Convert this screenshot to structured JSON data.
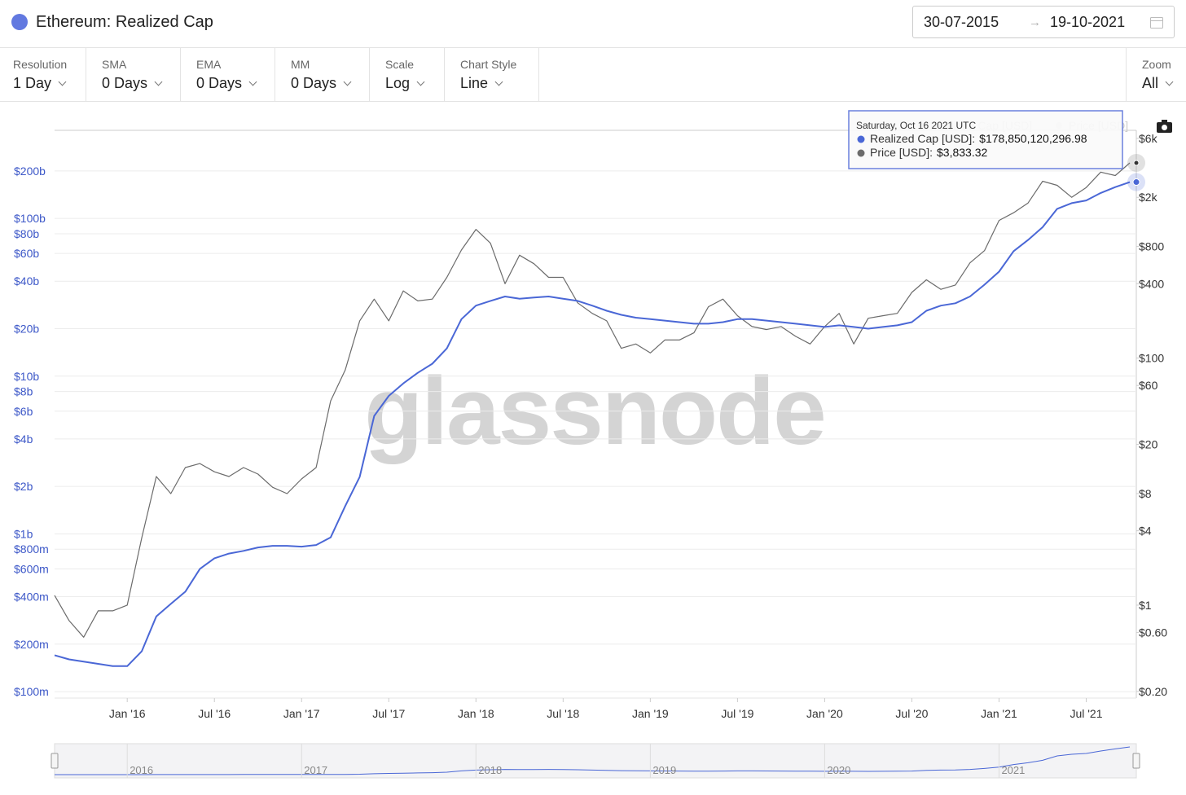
{
  "header": {
    "title": "Ethereum: Realized Cap",
    "date_from": "30-07-2015",
    "date_to": "19-10-2021"
  },
  "controls": [
    {
      "label": "Resolution",
      "value": "1 Day"
    },
    {
      "label": "SMA",
      "value": "0 Days"
    },
    {
      "label": "EMA",
      "value": "0 Days"
    },
    {
      "label": "MM",
      "value": "0 Days"
    },
    {
      "label": "Scale",
      "value": "Log"
    },
    {
      "label": "Chart Style",
      "value": "Line"
    }
  ],
  "zoom": {
    "label": "Zoom",
    "value": "All"
  },
  "chart_data": {
    "type": "line",
    "watermark": "glassnode",
    "log_scale": true,
    "grid": true,
    "legend": "top-right",
    "x": [
      "2015-08",
      "2015-09",
      "2015-10",
      "2015-11",
      "2015-12",
      "2016-01",
      "2016-02",
      "2016-03",
      "2016-04",
      "2016-05",
      "2016-06",
      "2016-07",
      "2016-08",
      "2016-09",
      "2016-10",
      "2016-11",
      "2016-12",
      "2017-01",
      "2017-02",
      "2017-03",
      "2017-04",
      "2017-05",
      "2017-06",
      "2017-07",
      "2017-08",
      "2017-09",
      "2017-10",
      "2017-11",
      "2017-12",
      "2018-01",
      "2018-02",
      "2018-03",
      "2018-04",
      "2018-05",
      "2018-06",
      "2018-07",
      "2018-08",
      "2018-09",
      "2018-10",
      "2018-11",
      "2018-12",
      "2019-01",
      "2019-02",
      "2019-03",
      "2019-04",
      "2019-05",
      "2019-06",
      "2019-07",
      "2019-08",
      "2019-09",
      "2019-10",
      "2019-11",
      "2019-12",
      "2020-01",
      "2020-02",
      "2020-03",
      "2020-04",
      "2020-05",
      "2020-06",
      "2020-07",
      "2020-08",
      "2020-09",
      "2020-10",
      "2020-11",
      "2020-12",
      "2021-01",
      "2021-02",
      "2021-03",
      "2021-04",
      "2021-05",
      "2021-06",
      "2021-07",
      "2021-08",
      "2021-09",
      "2021-10"
    ],
    "xlim": [
      "2015-08",
      "2021-10"
    ],
    "xticks": [
      {
        "value": "2016-01",
        "label": "Jan '16"
      },
      {
        "value": "2016-07",
        "label": "Jul '16"
      },
      {
        "value": "2017-01",
        "label": "Jan '17"
      },
      {
        "value": "2017-07",
        "label": "Jul '17"
      },
      {
        "value": "2018-01",
        "label": "Jan '18"
      },
      {
        "value": "2018-07",
        "label": "Jul '18"
      },
      {
        "value": "2019-01",
        "label": "Jan '19"
      },
      {
        "value": "2019-07",
        "label": "Jul '19"
      },
      {
        "value": "2020-01",
        "label": "Jan '20"
      },
      {
        "value": "2020-07",
        "label": "Jul '20"
      },
      {
        "value": "2021-01",
        "label": "Jan '21"
      },
      {
        "value": "2021-07",
        "label": "Jul '21"
      }
    ],
    "ylim": [
      91000000,
      362000000000
    ],
    "yticks": [
      {
        "value": 100000000,
        "label": "$100m"
      },
      {
        "value": 200000000,
        "label": "$200m"
      },
      {
        "value": 400000000,
        "label": "$400m"
      },
      {
        "value": 600000000,
        "label": "$600m"
      },
      {
        "value": 800000000,
        "label": "$800m"
      },
      {
        "value": 1000000000,
        "label": "$1b"
      },
      {
        "value": 2000000000,
        "label": "$2b"
      },
      {
        "value": 4000000000,
        "label": "$4b"
      },
      {
        "value": 6000000000,
        "label": "$6b"
      },
      {
        "value": 8000000000,
        "label": "$8b"
      },
      {
        "value": 10000000000,
        "label": "$10b"
      },
      {
        "value": 20000000000,
        "label": "$20b"
      },
      {
        "value": 40000000000,
        "label": "$40b"
      },
      {
        "value": 60000000000,
        "label": "$60b"
      },
      {
        "value": 80000000000,
        "label": "$80b"
      },
      {
        "value": 100000000000,
        "label": "$100b"
      },
      {
        "value": 200000000000,
        "label": "$200b"
      }
    ],
    "y2lim": [
      0.177,
      6970
    ],
    "y2ticks": [
      {
        "value": 0.2,
        "label": "$0.20"
      },
      {
        "value": 0.6,
        "label": "$0.60"
      },
      {
        "value": 1,
        "label": "$1"
      },
      {
        "value": 4,
        "label": "$4"
      },
      {
        "value": 8,
        "label": "$8"
      },
      {
        "value": 20,
        "label": "$20"
      },
      {
        "value": 60,
        "label": "$60"
      },
      {
        "value": 100,
        "label": "$100"
      },
      {
        "value": 400,
        "label": "$400"
      },
      {
        "value": 800,
        "label": "$800"
      },
      {
        "value": 2000,
        "label": "$2k"
      },
      {
        "value": 6000,
        "label": "$6k"
      }
    ],
    "series": [
      {
        "name": "Realized Cap [USD]",
        "color": "#4a67d6",
        "axis": "y",
        "values": [
          170000000,
          160000000,
          155000000,
          150000000,
          145000000,
          145000000,
          180000000,
          300000000,
          360000000,
          430000000,
          600000000,
          700000000,
          750000000,
          780000000,
          820000000,
          840000000,
          840000000,
          830000000,
          850000000,
          950000000,
          1500000000,
          2300000000,
          5600000000,
          7500000000,
          9000000000,
          10500000000,
          12000000000,
          15000000000,
          23000000000,
          28000000000,
          30000000000,
          32000000000,
          31000000000,
          31500000000,
          32000000000,
          31000000000,
          30000000000,
          28000000000,
          26000000000,
          24500000000,
          23500000000,
          23000000000,
          22500000000,
          22000000000,
          21500000000,
          21500000000,
          22000000000,
          23000000000,
          23000000000,
          22500000000,
          22000000000,
          21500000000,
          21000000000,
          20500000000,
          21000000000,
          20500000000,
          20000000000,
          20500000000,
          21000000000,
          22000000000,
          26000000000,
          28000000000,
          29000000000,
          32000000000,
          38000000000,
          46000000000,
          62000000000,
          73000000000,
          88000000000,
          115000000000,
          125000000000,
          130000000000,
          145000000000,
          158000000000,
          170000000000
        ]
      },
      {
        "name": "Price [USD]",
        "color": "#6b6b6b",
        "axis": "y2",
        "values": [
          1.2,
          0.75,
          0.55,
          0.9,
          0.9,
          1.0,
          3.5,
          11,
          8,
          13,
          14,
          12,
          11,
          13,
          11.5,
          9,
          8,
          10.5,
          13,
          45,
          80,
          200,
          300,
          200,
          350,
          290,
          300,
          450,
          750,
          1100,
          850,
          400,
          680,
          580,
          450,
          450,
          280,
          230,
          200,
          120,
          130,
          110,
          140,
          140,
          160,
          260,
          300,
          220,
          180,
          170,
          180,
          150,
          130,
          180,
          230,
          130,
          210,
          220,
          230,
          340,
          430,
          360,
          390,
          590,
          740,
          1300,
          1500,
          1800,
          2700,
          2500,
          2000,
          2400,
          3200,
          3000,
          3800
        ]
      }
    ]
  },
  "tooltip": {
    "date": "Saturday, Oct 16 2021 UTC",
    "rows": [
      {
        "label": "Realized Cap [USD]:",
        "value": "$178,850,120,296.98"
      },
      {
        "label": "Price [USD]:",
        "value": "$3,833.32"
      }
    ]
  },
  "navigator": {
    "labels": [
      "2016",
      "2017",
      "2018",
      "2019",
      "2020",
      "2021"
    ]
  }
}
